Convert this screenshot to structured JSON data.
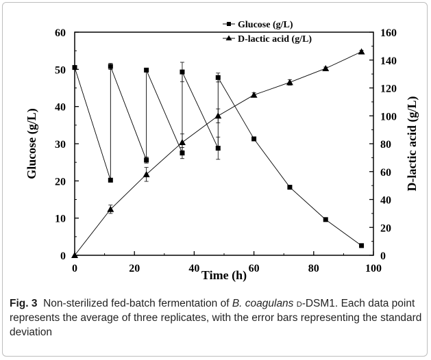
{
  "chart_data": {
    "type": "line",
    "xlabel": "Time (h)",
    "ylabel_left": "Glucose (g/L)",
    "ylabel_right": "D-lactic acid (g/L)",
    "xlim": [
      0,
      100
    ],
    "ylim_left": [
      0,
      60
    ],
    "ylim_right": [
      0,
      160
    ],
    "x_ticks": [
      0,
      20,
      40,
      60,
      80,
      100
    ],
    "y_ticks_left": [
      0,
      10,
      20,
      30,
      40,
      50,
      60
    ],
    "y_ticks_right": [
      0,
      20,
      40,
      60,
      80,
      100,
      120,
      140,
      160
    ],
    "grid": false,
    "legend": "top-center",
    "series": [
      {
        "name": "Glucose (g/L)",
        "axis": "left",
        "marker": "square",
        "points": [
          {
            "x": 0,
            "y": 50.5,
            "err": 0.3
          },
          {
            "x": 12,
            "y": 20.2,
            "err": 0.3
          },
          {
            "x": 12,
            "y": 50.8,
            "err": 0.8
          },
          {
            "x": 24,
            "y": 25.6,
            "err": 0.8
          },
          {
            "x": 24,
            "y": 49.8,
            "err": 0.3
          },
          {
            "x": 36,
            "y": 27.5,
            "err": 1.5
          },
          {
            "x": 36,
            "y": 49.3,
            "err": 2.6
          },
          {
            "x": 48,
            "y": 28.8,
            "err": 3.0
          },
          {
            "x": 48,
            "y": 47.8,
            "err": 1.2
          },
          {
            "x": 60,
            "y": 31.3,
            "err": 0.3
          },
          {
            "x": 72,
            "y": 18.3,
            "err": 0.3
          },
          {
            "x": 84,
            "y": 9.6,
            "err": 0.3
          },
          {
            "x": 96,
            "y": 2.6,
            "err": 0.3
          }
        ]
      },
      {
        "name": "D-lactic acid (g/L)",
        "axis": "right",
        "marker": "triangle",
        "points": [
          {
            "x": 0,
            "y": 0,
            "err": 0
          },
          {
            "x": 12,
            "y": 33,
            "err": 3
          },
          {
            "x": 24,
            "y": 58,
            "err": 5
          },
          {
            "x": 36,
            "y": 81,
            "err": 6
          },
          {
            "x": 48,
            "y": 100,
            "err": 5
          },
          {
            "x": 60,
            "y": 115,
            "err": 1.5
          },
          {
            "x": 72,
            "y": 124,
            "err": 2
          },
          {
            "x": 84,
            "y": 134,
            "err": 1
          },
          {
            "x": 96,
            "y": 146,
            "err": 1
          }
        ]
      }
    ]
  },
  "caption": {
    "label": "Fig. 3",
    "text_before_species": "Non-sterilized fed-batch fermentation of ",
    "species": "B. coagulans",
    "strain_prefix": "d",
    "strain_suffix": "-DSM1.",
    "text_rest": "Each data point represents the average of three replicates, with the error bars representing the standard deviation"
  }
}
